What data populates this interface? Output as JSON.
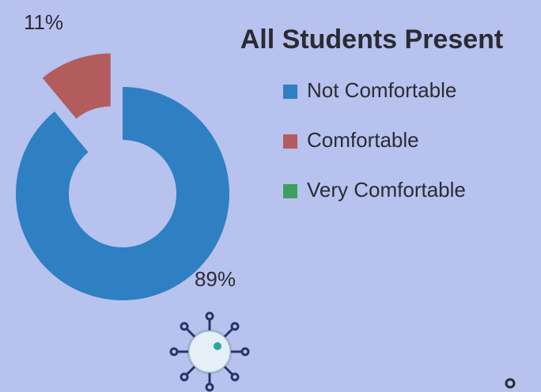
{
  "chart_data": {
    "type": "donut",
    "title": "All Students Present",
    "categories": [
      "Not Comfortable",
      "Comfortable",
      "Very Comfortable"
    ],
    "values": [
      89,
      11,
      0
    ],
    "value_labels": [
      "89%",
      "11%",
      null
    ],
    "colors": [
      "#2f7fc3",
      "#b35c5e",
      "#3f9f63"
    ],
    "legend": "right"
  }
}
